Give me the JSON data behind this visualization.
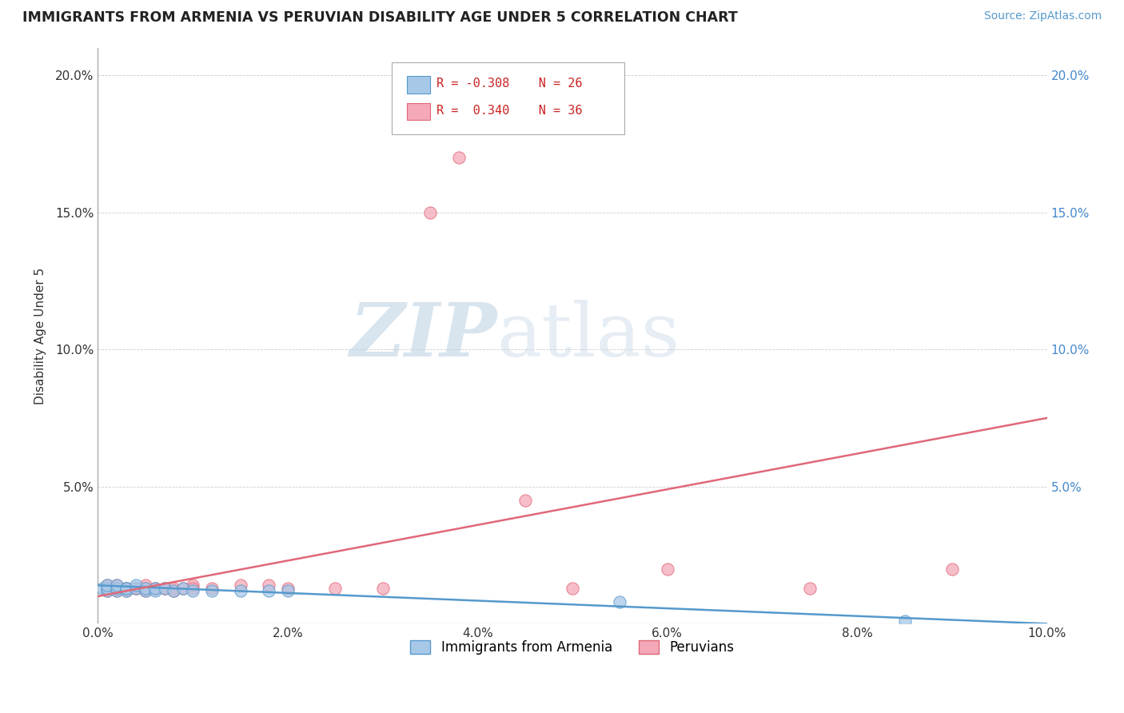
{
  "title": "IMMIGRANTS FROM ARMENIA VS PERUVIAN DISABILITY AGE UNDER 5 CORRELATION CHART",
  "source": "Source: ZipAtlas.com",
  "ylabel": "Disability Age Under 5",
  "xlim": [
    0.0,
    0.1
  ],
  "ylim": [
    0.0,
    0.21
  ],
  "xtick_vals": [
    0.0,
    0.02,
    0.04,
    0.06,
    0.08,
    0.1
  ],
  "xtick_labels": [
    "0.0%",
    "2.0%",
    "4.0%",
    "6.0%",
    "8.0%",
    "10.0%"
  ],
  "ytick_vals": [
    0.0,
    0.05,
    0.1,
    0.15,
    0.2
  ],
  "ytick_labels_left": [
    "",
    "5.0%",
    "10.0%",
    "15.0%",
    "20.0%"
  ],
  "ytick_labels_right": [
    "",
    "5.0%",
    "10.0%",
    "15.0%",
    "20.0%"
  ],
  "legend_r1": "R = -0.308",
  "legend_n1": "N = 26",
  "legend_r2": "R =  0.340",
  "legend_n2": "N = 36",
  "color_armenia": "#a8c8e8",
  "color_peru": "#f4a8b8",
  "color_line_armenia": "#5599cc",
  "color_line_peru": "#e06878",
  "watermark_zip": "ZIP",
  "watermark_atlas": "atlas",
  "armenia_scatter_x": [
    0.0005,
    0.001,
    0.001,
    0.001,
    0.002,
    0.002,
    0.002,
    0.003,
    0.003,
    0.003,
    0.004,
    0.004,
    0.005,
    0.005,
    0.006,
    0.006,
    0.007,
    0.008,
    0.009,
    0.01,
    0.012,
    0.015,
    0.018,
    0.02,
    0.055,
    0.085
  ],
  "armenia_scatter_y": [
    0.013,
    0.012,
    0.013,
    0.014,
    0.012,
    0.013,
    0.014,
    0.012,
    0.013,
    0.013,
    0.013,
    0.014,
    0.012,
    0.013,
    0.012,
    0.013,
    0.013,
    0.012,
    0.013,
    0.012,
    0.012,
    0.012,
    0.012,
    0.012,
    0.008,
    0.001
  ],
  "peru_scatter_x": [
    0.001,
    0.001,
    0.001,
    0.002,
    0.002,
    0.002,
    0.003,
    0.003,
    0.003,
    0.004,
    0.004,
    0.005,
    0.005,
    0.005,
    0.006,
    0.006,
    0.007,
    0.007,
    0.008,
    0.008,
    0.009,
    0.01,
    0.01,
    0.012,
    0.015,
    0.018,
    0.02,
    0.025,
    0.03,
    0.035,
    0.038,
    0.045,
    0.05,
    0.06,
    0.075,
    0.09
  ],
  "peru_scatter_y": [
    0.012,
    0.013,
    0.014,
    0.012,
    0.013,
    0.014,
    0.012,
    0.013,
    0.013,
    0.013,
    0.013,
    0.012,
    0.013,
    0.014,
    0.013,
    0.013,
    0.013,
    0.013,
    0.012,
    0.013,
    0.013,
    0.014,
    0.013,
    0.013,
    0.014,
    0.014,
    0.013,
    0.013,
    0.013,
    0.15,
    0.17,
    0.045,
    0.013,
    0.02,
    0.013,
    0.02
  ],
  "armenia_line_x": [
    0.0,
    0.1
  ],
  "armenia_line_y": [
    0.014,
    0.0
  ],
  "peru_line_x": [
    0.0,
    0.1
  ],
  "peru_line_y": [
    0.01,
    0.075
  ]
}
